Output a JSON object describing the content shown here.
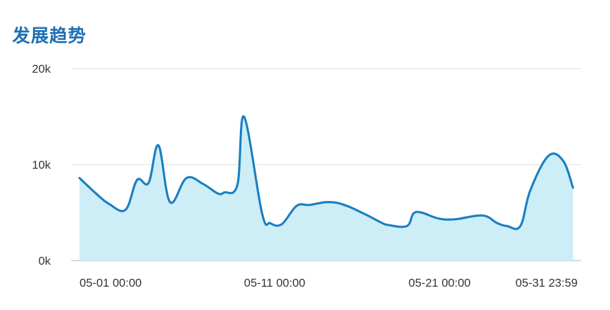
{
  "chart_data": {
    "type": "area",
    "title": "发展趋势",
    "xlabel": "",
    "ylabel": "",
    "ylim": [
      0,
      20000
    ],
    "y_ticks": [
      {
        "value": 0,
        "label": "0k"
      },
      {
        "value": 10000,
        "label": "10k"
      },
      {
        "value": 20000,
        "label": "20k"
      }
    ],
    "x_ticks": [
      {
        "value": 0,
        "label": "05-01 00:00"
      },
      {
        "value": 10,
        "label": "05-11 00:00"
      },
      {
        "value": 20,
        "label": "05-21 00:00"
      },
      {
        "value": 30,
        "label": "05-31 23:59"
      }
    ],
    "x_unit": "day",
    "grid": true,
    "colors": {
      "line": "#1a7fc1",
      "fill": "#cdeef6",
      "grid": "#e3e3e3",
      "axis": "#c8c8c8",
      "title": "#1f6fb5"
    },
    "series": [
      {
        "x": [
          0,
          1,
          1.8,
          2.8,
          3.5,
          4.2,
          4.8,
          5.5,
          6.5,
          7.5,
          8.4,
          8.8,
          9.6,
          10.0,
          11.1,
          11.6,
          12.3,
          13.2,
          14.0,
          15.1,
          16.1,
          17.4,
          18.3,
          18.8,
          19.9,
          20.3,
          20.8,
          21.8,
          22.8,
          24.5,
          25.4,
          26.0,
          26.8,
          27.4,
          28.5,
          29.4,
          30.0
        ],
        "values": [
          8600,
          7000,
          5900,
          5300,
          8400,
          8100,
          12000,
          6100,
          8600,
          8000,
          7000,
          7100,
          7900,
          15000,
          4900,
          3900,
          3800,
          5700,
          5800,
          6100,
          5800,
          4800,
          4000,
          3700,
          3600,
          4900,
          5000,
          4400,
          4300,
          4700,
          3900,
          3600,
          3600,
          7300,
          10900,
          10400,
          7600
        ]
      }
    ]
  }
}
